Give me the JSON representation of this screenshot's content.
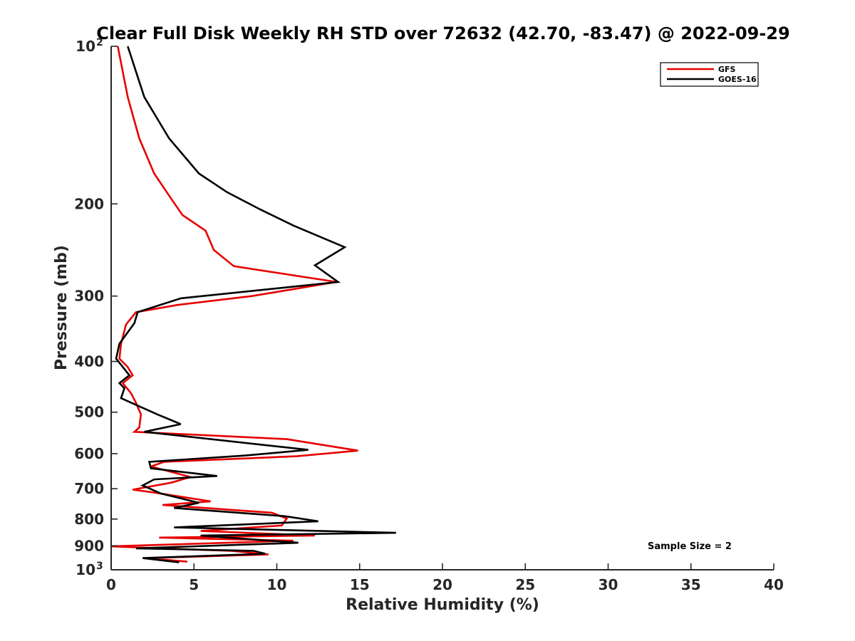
{
  "chart_data": {
    "type": "line",
    "title": "Clear Full Disk Weekly RH STD over 72632 (42.70, -83.47) @ 2022-09-29",
    "xlabel": "Relative Humidity (%)",
    "ylabel": "Pressure (mb)",
    "xlim": [
      0,
      40
    ],
    "ylim": [
      100,
      1000
    ],
    "y_scale": "log",
    "y_reversed": true,
    "x_ticks": [
      "0",
      "5",
      "10",
      "15",
      "20",
      "25",
      "30",
      "35",
      "40"
    ],
    "y_ticks": [
      {
        "value": 100,
        "label": "10",
        "sup": "2"
      },
      {
        "value": 200,
        "label": "200",
        "sup": ""
      },
      {
        "value": 300,
        "label": "300",
        "sup": ""
      },
      {
        "value": 400,
        "label": "400",
        "sup": ""
      },
      {
        "value": 500,
        "label": "500",
        "sup": ""
      },
      {
        "value": 600,
        "label": "600",
        "sup": ""
      },
      {
        "value": 700,
        "label": "700",
        "sup": ""
      },
      {
        "value": 800,
        "label": "800",
        "sup": ""
      },
      {
        "value": 900,
        "label": "900",
        "sup": ""
      },
      {
        "value": 1000,
        "label": "10",
        "sup": "3"
      }
    ],
    "grid": false,
    "legend_position": "top-right",
    "annotation": "Sample Size = 2",
    "series": [
      {
        "name": "GFS",
        "color": "#e60000",
        "points": [
          [
            0.4,
            100
          ],
          [
            1.0,
            125
          ],
          [
            1.7,
            150
          ],
          [
            2.6,
            175
          ],
          [
            3.6,
            195
          ],
          [
            4.3,
            210
          ],
          [
            5.7,
            225
          ],
          [
            6.2,
            245
          ],
          [
            7.4,
            263
          ],
          [
            13.6,
            282
          ],
          [
            8.5,
            300
          ],
          [
            4.0,
            312
          ],
          [
            1.5,
            322
          ],
          [
            0.9,
            340
          ],
          [
            0.6,
            370
          ],
          [
            0.5,
            395
          ],
          [
            1.0,
            410
          ],
          [
            1.3,
            425
          ],
          [
            0.7,
            440
          ],
          [
            1.2,
            460
          ],
          [
            1.5,
            480
          ],
          [
            1.8,
            505
          ],
          [
            1.7,
            535
          ],
          [
            1.4,
            545
          ],
          [
            10.6,
            563
          ],
          [
            14.9,
            592
          ],
          [
            11.2,
            607
          ],
          [
            3.2,
            622
          ],
          [
            2.4,
            635
          ],
          [
            4.8,
            665
          ],
          [
            3.6,
            682
          ],
          [
            1.3,
            703
          ],
          [
            2.6,
            712
          ],
          [
            6.0,
            740
          ],
          [
            3.1,
            752
          ],
          [
            9.7,
            778
          ],
          [
            10.6,
            798
          ],
          [
            10.3,
            823
          ],
          [
            5.4,
            843
          ],
          [
            12.3,
            860
          ],
          [
            2.9,
            868
          ],
          [
            11.0,
            880
          ],
          [
            0.0,
            902
          ],
          [
            3.0,
            910
          ],
          [
            7.3,
            920
          ],
          [
            9.5,
            935
          ],
          [
            2.1,
            950
          ],
          [
            4.6,
            965
          ]
        ]
      },
      {
        "name": "GOES-16",
        "color": "#000000",
        "points": [
          [
            1.0,
            100
          ],
          [
            2.0,
            125
          ],
          [
            3.5,
            150
          ],
          [
            5.3,
            175
          ],
          [
            7.0,
            190
          ],
          [
            9.0,
            205
          ],
          [
            11.0,
            220
          ],
          [
            14.1,
            242
          ],
          [
            12.3,
            262
          ],
          [
            13.7,
            282
          ],
          [
            4.2,
            303
          ],
          [
            1.6,
            322
          ],
          [
            1.4,
            338
          ],
          [
            0.5,
            370
          ],
          [
            0.3,
            395
          ],
          [
            1.1,
            425
          ],
          [
            0.5,
            440
          ],
          [
            0.8,
            450
          ],
          [
            0.6,
            470
          ],
          [
            2.8,
            505
          ],
          [
            4.2,
            527
          ],
          [
            2.0,
            545
          ],
          [
            11.9,
            590
          ],
          [
            8.1,
            605
          ],
          [
            2.3,
            622
          ],
          [
            2.4,
            640
          ],
          [
            6.4,
            662
          ],
          [
            2.6,
            672
          ],
          [
            1.9,
            690
          ],
          [
            3.0,
            715
          ],
          [
            5.3,
            745
          ],
          [
            3.8,
            762
          ],
          [
            10.5,
            790
          ],
          [
            12.5,
            808
          ],
          [
            3.8,
            830
          ],
          [
            17.2,
            850
          ],
          [
            5.4,
            860
          ],
          [
            11.3,
            888
          ],
          [
            1.5,
            910
          ],
          [
            8.6,
            920
          ],
          [
            9.3,
            932
          ],
          [
            1.9,
            950
          ],
          [
            4.1,
            968
          ]
        ]
      }
    ]
  }
}
